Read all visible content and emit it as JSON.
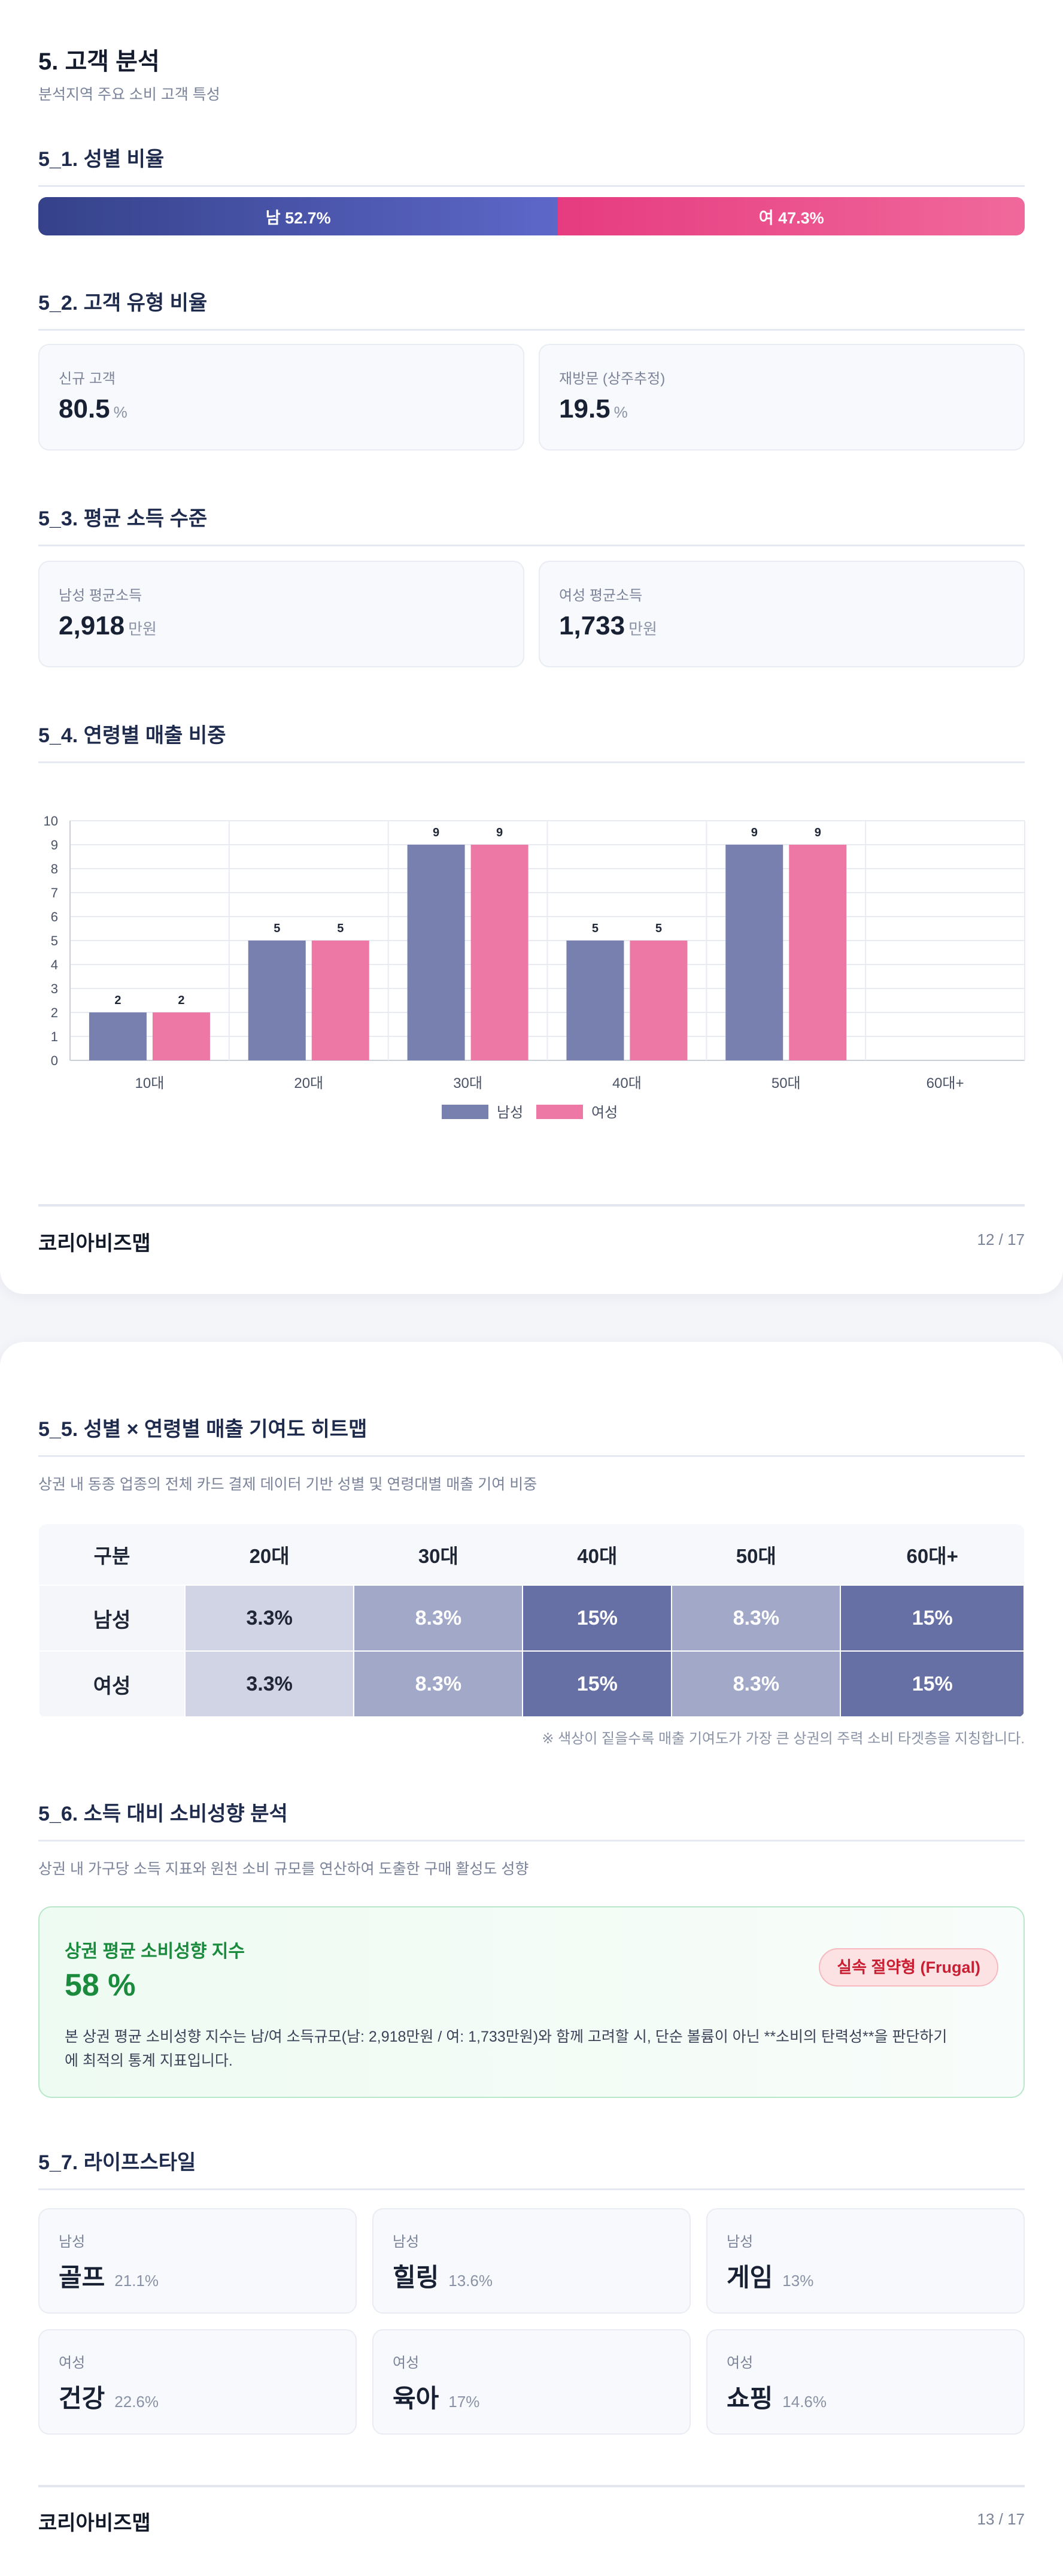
{
  "page1": {
    "title": "5. 고객 분석",
    "subtitle": "분석지역 주요 소비 고객 특성",
    "gender": {
      "title": "5_1. 성별 비율",
      "male_label": "남 52.7%",
      "female_label": "여 47.3%",
      "male_pct": 52.7,
      "female_pct": 47.3,
      "male_color": "#4a54a8",
      "female_color": "#ec4b8b"
    },
    "customer_type": {
      "title": "5_2. 고객 유형 비율",
      "cards": [
        {
          "label": "신규 고객",
          "value": "80.5",
          "unit": "%"
        },
        {
          "label": "재방문 (상주추정)",
          "value": "19.5",
          "unit": "%"
        }
      ]
    },
    "income": {
      "title": "5_3. 평균 소득 수준",
      "cards": [
        {
          "label": "남성 평균소득",
          "value": "2,918",
          "unit": "만원"
        },
        {
          "label": "여성 평균소득",
          "value": "1,733",
          "unit": "만원"
        }
      ]
    },
    "age_sales": {
      "title": "5_4. 연령별 매출 비중"
    },
    "footer": {
      "brand": "코리아비즈맵",
      "page": "12 / 17"
    }
  },
  "chart_data": {
    "type": "bar",
    "categories": [
      "10대",
      "20대",
      "30대",
      "40대",
      "50대",
      "60대+"
    ],
    "series": [
      {
        "name": "남성",
        "values": [
          2,
          5,
          9,
          5,
          9,
          null
        ],
        "color": "#7780ae"
      },
      {
        "name": "여성",
        "values": [
          2,
          5,
          9,
          5,
          9,
          null
        ],
        "color": "#ed78a6"
      }
    ],
    "data_labels": [
      [
        "2",
        "5",
        "9",
        "5",
        "9",
        ""
      ],
      [
        "2",
        "5",
        "9",
        "5",
        "9",
        ""
      ]
    ],
    "title": "",
    "xlabel": "",
    "ylabel": "",
    "ylim": [
      0,
      10
    ],
    "yticks": [
      "0",
      "1",
      "2",
      "3",
      "4",
      "5",
      "6",
      "7",
      "8",
      "9",
      "10"
    ],
    "grid": true,
    "legend": "bottom-center"
  },
  "page2": {
    "heatmap": {
      "title": "5_5. 성별 × 연령별 매출 기여도 히트맵",
      "desc": "상권 내 동종 업종의 전체 카드 결제 데이터 기반 성별 및 연령대별 매출 기여 비중",
      "corner": "구분",
      "columns": [
        "20대",
        "30대",
        "40대",
        "50대",
        "60대+"
      ],
      "rows": [
        {
          "label": "남성",
          "cells": [
            "3.3%",
            "8.3%",
            "15%",
            "8.3%",
            "15%"
          ]
        },
        {
          "label": "여성",
          "cells": [
            "3.3%",
            "8.3%",
            "15%",
            "8.3%",
            "15%"
          ]
        }
      ],
      "levels": [
        3.3,
        8.3,
        15,
        8.3,
        15
      ],
      "colors": {
        "low": "#d1d4e4",
        "mid": "#a2a8c7",
        "high": "#6770a4"
      },
      "note": "※ 색상이 짙을수록 매출 기여도가 가장 큰 상권의 주력 소비 타겟층을 지칭합니다."
    },
    "spending": {
      "title": "5_6. 소득 대비 소비성향 분석",
      "desc": "상권 내 가구당 소득 지표와 원천 소비 규모를 연산하여 도출한 구매 활성도 성향",
      "card_title": "상권 평균 소비성향 지수",
      "value": "58 %",
      "badge": "실속 절약형 (Frugal)",
      "body_line1": "본 상권 평균 소비성향 지수는 남/여 소득규모(남: 2,918만원 / 여: 1,733만원)와 함께 고려할 시, 단순 볼륨이 아닌 **소비의 탄력성**을 판단하기",
      "body_line2": "에 최적의 통계 지표입니다.",
      "accent_color": "#1a8a3c"
    },
    "lifestyle": {
      "title": "5_7. 라이프스타일",
      "items": [
        {
          "gender": "남성",
          "name": "골프",
          "pct": "21.1%"
        },
        {
          "gender": "남성",
          "name": "힐링",
          "pct": "13.6%"
        },
        {
          "gender": "남성",
          "name": "게임",
          "pct": "13%"
        },
        {
          "gender": "여성",
          "name": "건강",
          "pct": "22.6%"
        },
        {
          "gender": "여성",
          "name": "육아",
          "pct": "17%"
        },
        {
          "gender": "여성",
          "name": "쇼핑",
          "pct": "14.6%"
        }
      ]
    },
    "footer": {
      "brand": "코리아비즈맵",
      "page": "13 / 17"
    }
  }
}
